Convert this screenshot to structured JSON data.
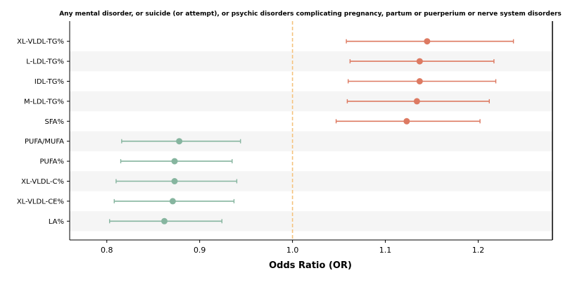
{
  "chart_data": {
    "type": "forest",
    "title": "Any mental disorder, or suicide (or attempt), or psychic disorders complicating pregnancy, partum or puerperium or nerve system disorders",
    "xlabel": "Odds Ratio (OR)",
    "ylabel": "",
    "xlim": [
      0.76,
      1.28
    ],
    "x_ticks": [
      "0.8",
      "0.9",
      "1.0",
      "1.1",
      "1.2"
    ],
    "reference_line": 1.0,
    "reference_color": "#f5c27d",
    "colors": {
      "risk": "#dd7a62",
      "protective": "#86b59f",
      "band": "#f5f5f5"
    },
    "grid": false,
    "rows": [
      {
        "label": "XL-VLDL-TG%",
        "or": 1.145,
        "lower": 1.058,
        "upper": 1.238,
        "group": "risk"
      },
      {
        "label": "L-LDL-TG%",
        "or": 1.137,
        "lower": 1.062,
        "upper": 1.217,
        "group": "risk"
      },
      {
        "label": "IDL-TG%",
        "or": 1.137,
        "lower": 1.06,
        "upper": 1.219,
        "group": "risk"
      },
      {
        "label": "M-LDL-TG%",
        "or": 1.134,
        "lower": 1.059,
        "upper": 1.212,
        "group": "risk"
      },
      {
        "label": "SFA%",
        "or": 1.123,
        "lower": 1.047,
        "upper": 1.202,
        "group": "risk"
      },
      {
        "label": "PUFA/MUFA",
        "or": 0.878,
        "lower": 0.816,
        "upper": 0.944,
        "group": "protective"
      },
      {
        "label": "PUFA%",
        "or": 0.873,
        "lower": 0.815,
        "upper": 0.935,
        "group": "protective"
      },
      {
        "label": "XL-VLDL-C%",
        "or": 0.873,
        "lower": 0.81,
        "upper": 0.94,
        "group": "protective"
      },
      {
        "label": "XL-VLDL-CE%",
        "or": 0.871,
        "lower": 0.808,
        "upper": 0.937,
        "group": "protective"
      },
      {
        "label": "LA%",
        "or": 0.862,
        "lower": 0.803,
        "upper": 0.924,
        "group": "protective"
      }
    ]
  }
}
